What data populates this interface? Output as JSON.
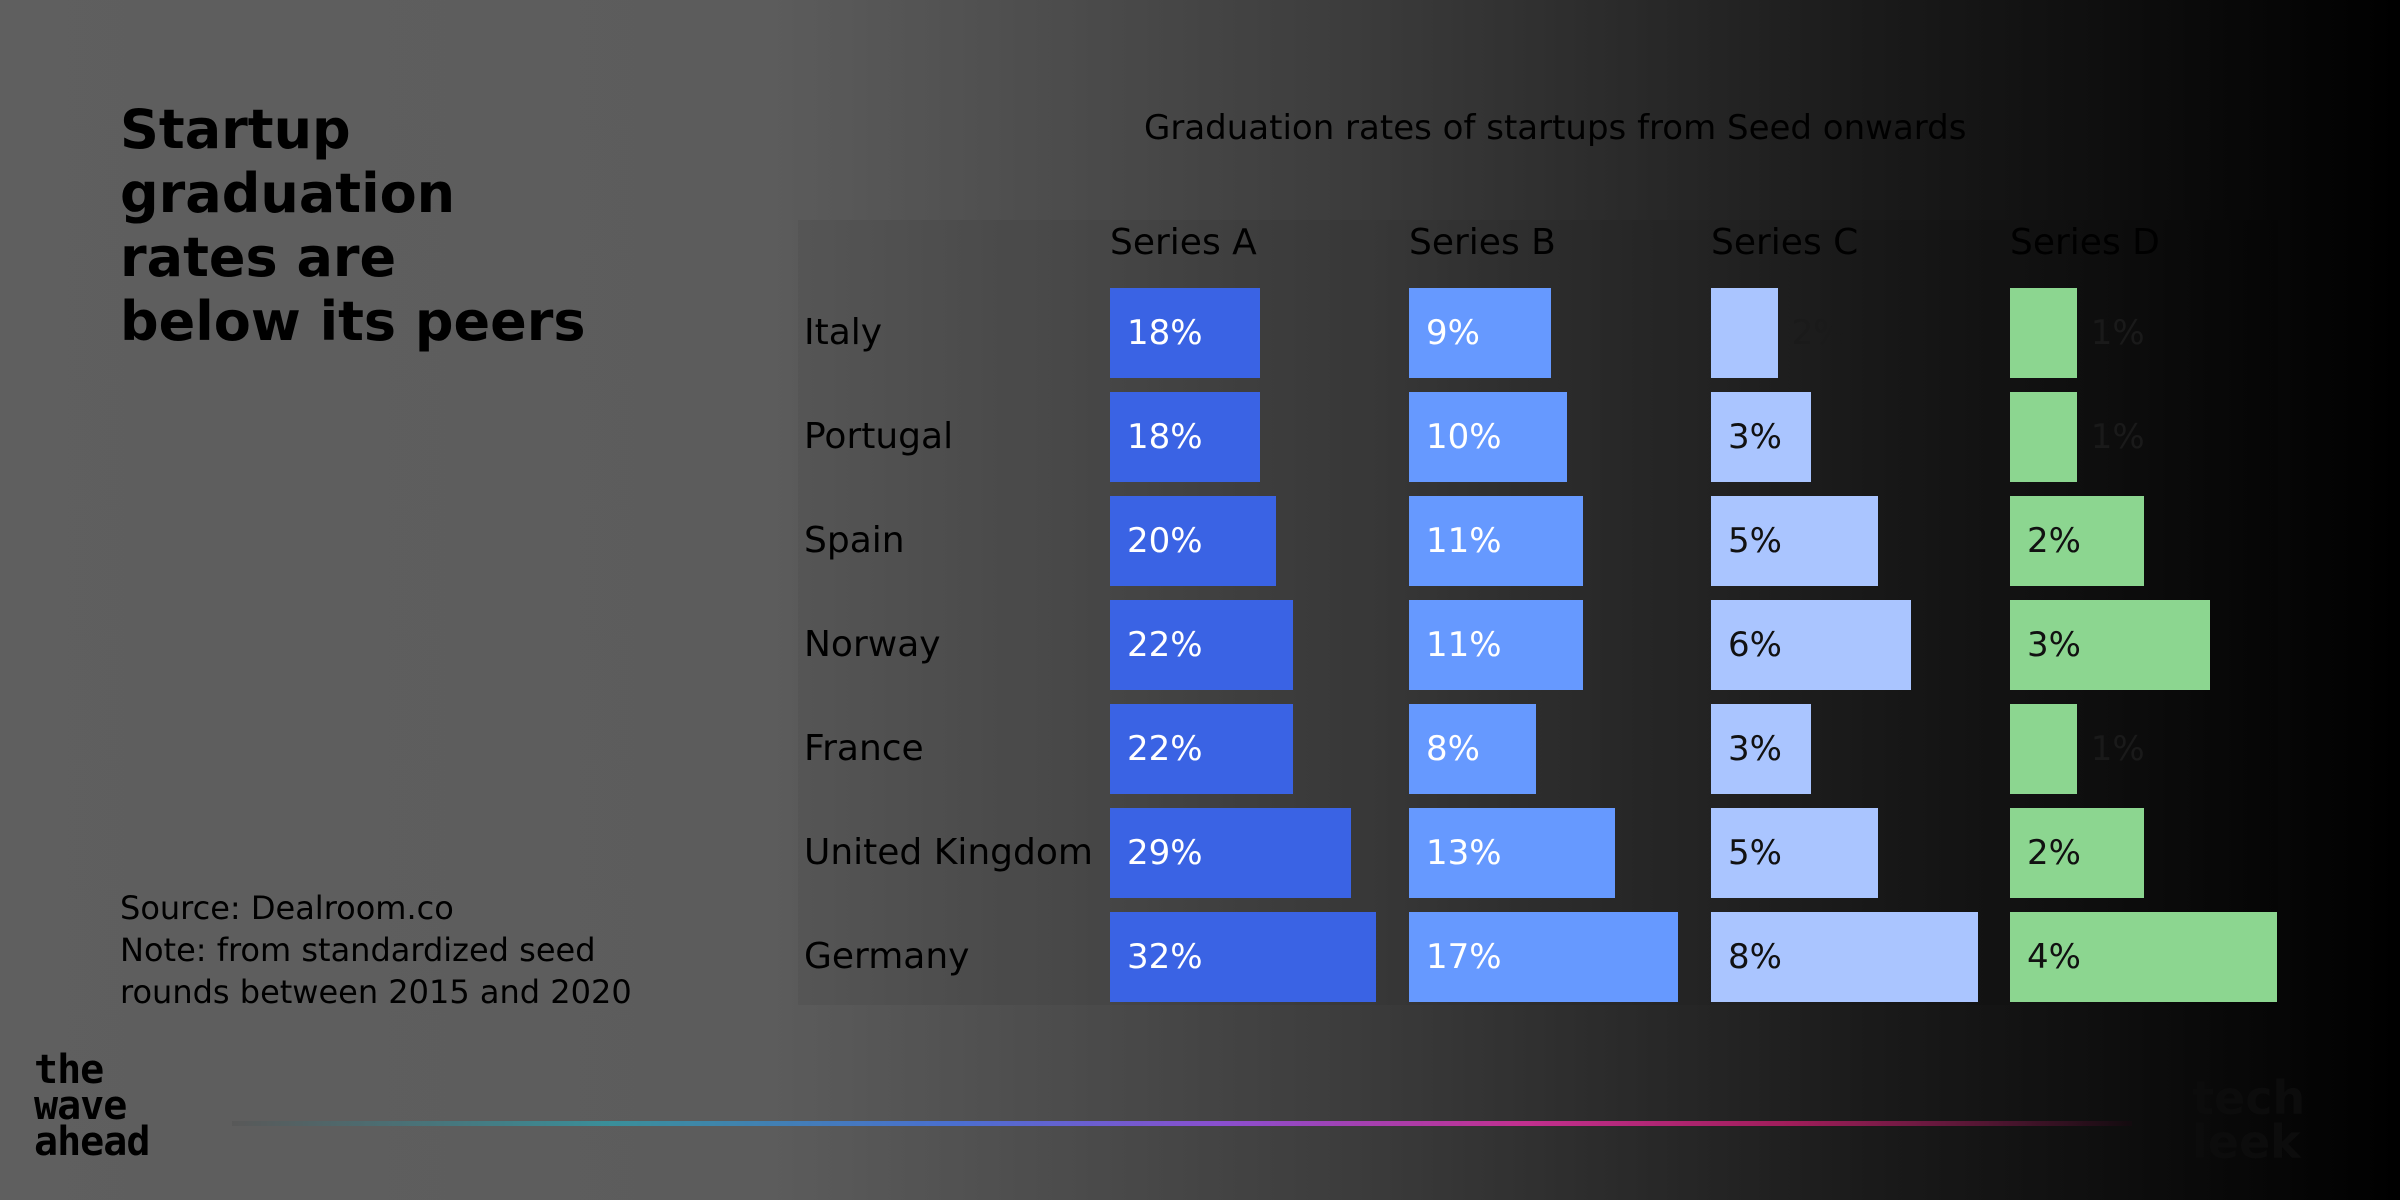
{
  "headline": "Startup graduation rates are below its peers",
  "source": {
    "line1": "Source:  Dealroom.co",
    "line2": "Note: from standardized seed",
    "line3": "rounds between 2015 and 2020"
  },
  "logo": {
    "lines": [
      "the",
      "wave",
      "ahead"
    ]
  },
  "brand": {
    "lines": [
      "tech",
      "leek"
    ]
  },
  "colors": {
    "series_a": "#3a63e4",
    "series_b": "#6699ff",
    "series_c": "#aac5ff",
    "series_d": "#8cd690"
  },
  "chart_data": {
    "type": "bar",
    "orientation": "horizontal",
    "layout": "small-multiples",
    "title": "Graduation rates of startups from Seed onwards",
    "categories": [
      "Italy",
      "Portugal",
      "Spain",
      "Norway",
      "France",
      "United Kingdom",
      "Germany"
    ],
    "series": [
      {
        "name": "Series A",
        "values": [
          18,
          18,
          20,
          22,
          22,
          29,
          32
        ],
        "labels": [
          "18%",
          "18%",
          "20%",
          "22%",
          "22%",
          "29%",
          "32%"
        ],
        "max": 32
      },
      {
        "name": "Series B",
        "values": [
          9,
          10,
          11,
          11,
          8,
          13,
          17
        ],
        "labels": [
          "9%",
          "10%",
          "11%",
          "11%",
          "8%",
          "13%",
          "17%"
        ],
        "max": 17
      },
      {
        "name": "Series C",
        "values": [
          2,
          3,
          5,
          6,
          3,
          5,
          8
        ],
        "labels": [
          "2%",
          "3%",
          "5%",
          "6%",
          "3%",
          "5%",
          "8%"
        ],
        "max": 8
      },
      {
        "name": "Series D",
        "values": [
          1,
          1,
          2,
          3,
          1,
          2,
          4
        ],
        "labels": [
          "1%",
          "1%",
          "2%",
          "3%",
          "1%",
          "2%",
          "4%"
        ],
        "max": 4
      }
    ],
    "unit": "%",
    "grid": false,
    "legend": "none"
  }
}
